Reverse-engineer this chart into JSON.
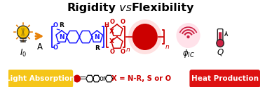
{
  "bg_color": "#ffffff",
  "title_fontsize": 11.5,
  "light_absorption_label": "Light Absorption",
  "light_absorption_bg": "#F5C518",
  "heat_production_label": "Heat Production",
  "heat_production_bg": "#DD1111",
  "arrow_color": "#E8820A",
  "blue_color": "#1a1aff",
  "red_color": "#CC0000",
  "red_glow_color": "#FF4466",
  "bottom_x_text": "X = N-R, S or O",
  "figsize": [
    3.78,
    1.25
  ],
  "dpi": 100
}
